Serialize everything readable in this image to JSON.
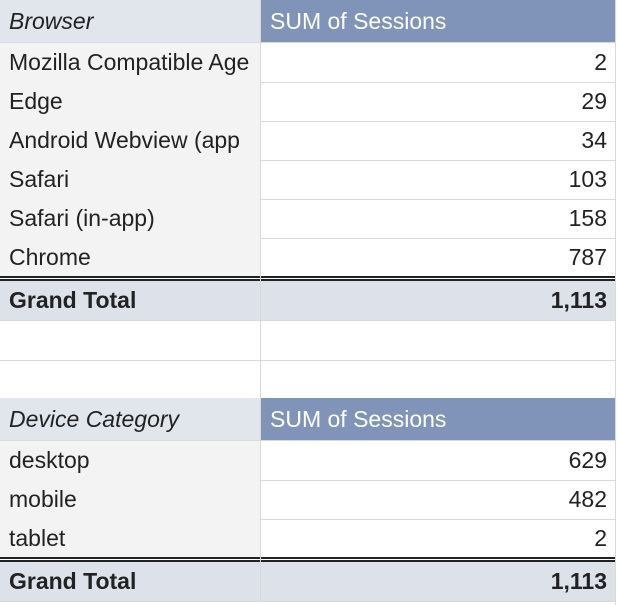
{
  "tables": [
    {
      "header": [
        "Browser",
        "SUM of Sessions"
      ],
      "rows": [
        [
          "Mozilla Compatible Age",
          "2"
        ],
        [
          "Edge",
          "29"
        ],
        [
          "Android Webview (app",
          "34"
        ],
        [
          "Safari",
          "103"
        ],
        [
          "Safari (in-app)",
          "158"
        ],
        [
          "Chrome",
          "787"
        ]
      ],
      "total": [
        "Grand Total",
        "1,113"
      ]
    },
    {
      "header": [
        "Device Category",
        "SUM of Sessions"
      ],
      "rows": [
        [
          "desktop",
          "629"
        ],
        [
          "mobile",
          "482"
        ],
        [
          "tablet",
          "2"
        ]
      ],
      "total": [
        "Grand Total",
        "1,113"
      ]
    }
  ]
}
